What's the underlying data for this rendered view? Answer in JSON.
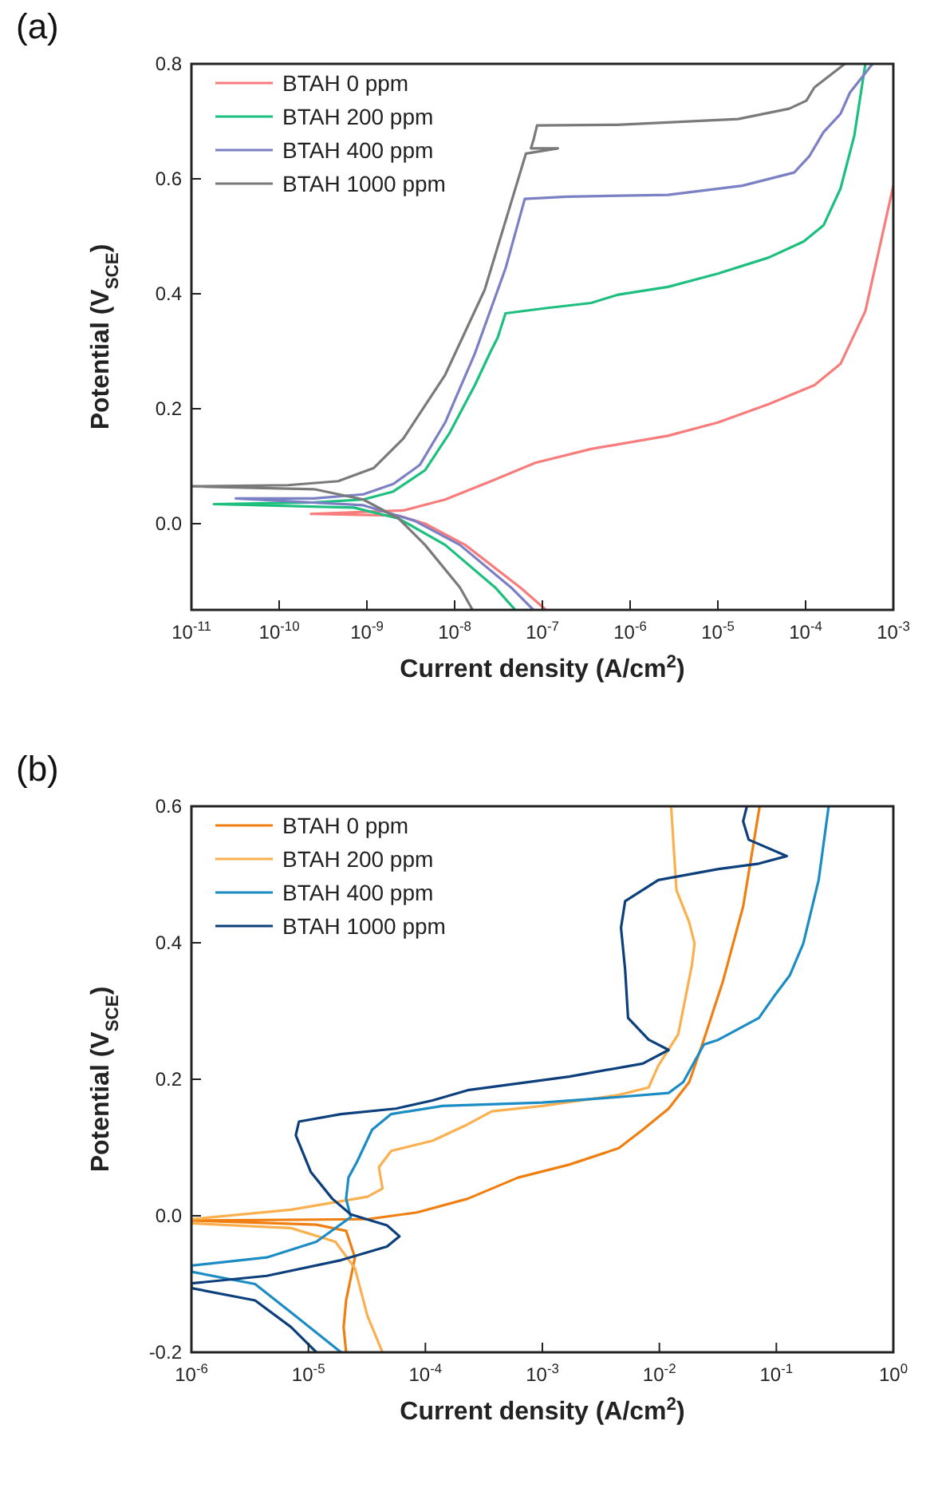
{
  "chart_data": [
    {
      "type": "line",
      "annotations": [
        "(a)"
      ],
      "xlabel": "Current density (A/cm$^{2}$)",
      "ylabel": "Potential (V$_{SCE}$)",
      "log": "x",
      "grid": false,
      "legend": "top left",
      "line_style": "solid",
      "marker": "none",
      "xlim": [
        1e-11,
        0.001
      ],
      "ylim": [
        -0.15,
        0.8
      ],
      "xticks": [
        {
          "value": 1e-11,
          "label": "10$^{-11}$"
        },
        {
          "value": 1e-10,
          "label": "10$^{-10}$"
        },
        {
          "value": 1e-09,
          "label": "10$^{-9}$"
        },
        {
          "value": 1e-08,
          "label": "10$^{-8}$"
        },
        {
          "value": 1e-07,
          "label": "10$^{-7}$"
        },
        {
          "value": 1e-06,
          "label": "10$^{-6}$"
        },
        {
          "value": 1e-05,
          "label": "10$^{-5}$"
        },
        {
          "value": 0.0001,
          "label": "10$^{-4}$"
        },
        {
          "value": 0.001,
          "label": "10$^{-3}$"
        }
      ],
      "yticks": [
        {
          "value": 0,
          "label": "0.0"
        },
        {
          "value": 0.2,
          "label": "0.2"
        },
        {
          "value": 0.4,
          "label": "0.4"
        },
        {
          "value": 0.6,
          "label": "0.6"
        },
        {
          "value": 0.8,
          "label": "0.8"
        }
      ],
      "series": [
        {
          "name": "BTAH 0 ppm",
          "color": "#f87c7c",
          "x": [
            1.1e-07,
            5.6e-08,
            1.32e-08,
            4.6e-09,
            2.3e-09,
            2.3e-10,
            2.6e-09,
            7.8e-09,
            2.6e-08,
            8.3e-08,
            3.6e-07,
            2.7e-06,
            1e-05,
            3.8e-05,
            0.000126,
            0.00025,
            0.00048,
            0.001
          ],
          "values": [
            -0.15,
            -0.111,
            -0.037,
            0.0,
            0.014,
            0.017,
            0.023,
            0.042,
            0.074,
            0.106,
            0.13,
            0.153,
            0.176,
            0.208,
            0.241,
            0.278,
            0.37,
            0.588
          ]
        },
        {
          "name": "BTAH 200 ppm",
          "color": "#1dbf7f",
          "x": [
            4.9e-08,
            2.9e-08,
            7.8e-09,
            2.3e-09,
            7.1e-10,
            1.8e-11,
            2.5e-10,
            9.1e-10,
            2e-09,
            4.6e-09,
            8.7e-09,
            1.7e-08,
            2.6e-08,
            3.1e-08,
            3.8e-08,
            1.1e-07,
            3.6e-07,
            7.1e-07,
            2.7e-06,
            1e-05,
            3.8e-05,
            9.5e-05,
            0.00016,
            0.00025,
            0.00036,
            0.00048
          ],
          "values": [
            -0.15,
            -0.111,
            -0.037,
            0.009,
            0.028,
            0.034,
            0.037,
            0.042,
            0.056,
            0.093,
            0.157,
            0.241,
            0.301,
            0.324,
            0.366,
            0.375,
            0.384,
            0.398,
            0.412,
            0.435,
            0.463,
            0.491,
            0.519,
            0.583,
            0.676,
            0.8
          ]
        },
        {
          "name": "BTAH 400 ppm",
          "color": "#7b7fc4",
          "x": [
            7.9e-08,
            4.4e-08,
            1.15e-08,
            3.5e-09,
            9.1e-10,
            3.2e-11,
            2.5e-10,
            9.1e-10,
            2e-09,
            4e-09,
            7.8e-09,
            1.7e-08,
            3.8e-08,
            6.3e-08,
            1.9e-07,
            2.7e-06,
            1.9e-05,
            7.4e-05,
            0.00011,
            0.00016,
            0.00025,
            0.00032,
            0.00058
          ],
          "values": [
            -0.15,
            -0.111,
            -0.037,
            0.005,
            0.032,
            0.044,
            0.044,
            0.051,
            0.069,
            0.102,
            0.176,
            0.296,
            0.444,
            0.565,
            0.569,
            0.572,
            0.588,
            0.611,
            0.639,
            0.681,
            0.713,
            0.75,
            0.8
          ]
        },
        {
          "name": "BTAH 1000 ppm",
          "color": "#7a7a7a",
          "x": [
            1.6e-08,
            1.15e-08,
            4.6e-09,
            2.3e-09,
            9.1e-10,
            2.5e-10,
            1e-11,
            1.26e-10,
            4.7e-10,
            1.2e-09,
            2.6e-09,
            7.8e-09,
            2.2e-08,
            6.5e-08,
            1.5e-07,
            7.4e-08,
            7.9e-08,
            8.7e-08,
            7.1e-07,
            1.7e-05,
            6.5e-05,
            0.000102,
            0.000126,
            0.00028
          ],
          "values": [
            -0.15,
            -0.111,
            -0.037,
            0.009,
            0.042,
            0.06,
            0.065,
            0.067,
            0.074,
            0.097,
            0.148,
            0.259,
            0.407,
            0.644,
            0.653,
            0.653,
            0.667,
            0.693,
            0.694,
            0.704,
            0.722,
            0.736,
            0.759,
            0.8
          ]
        }
      ]
    },
    {
      "type": "line",
      "annotations": [
        "(b)"
      ],
      "xlabel": "Current density (A/cm$^{2}$)",
      "ylabel": "Potential (V$_{SCE}$)",
      "log": "x",
      "grid": false,
      "legend": "top left",
      "line_style": "solid",
      "marker": "none",
      "xlim": [
        1e-06,
        1
      ],
      "ylim": [
        -0.2,
        0.6
      ],
      "xticks": [
        {
          "value": 1e-06,
          "label": "10$^{-6}$"
        },
        {
          "value": 1e-05,
          "label": "10$^{-5}$"
        },
        {
          "value": 0.0001,
          "label": "10$^{-4}$"
        },
        {
          "value": 0.001,
          "label": "10$^{-3}$"
        },
        {
          "value": 0.01,
          "label": "10$^{-2}$"
        },
        {
          "value": 0.1,
          "label": "10$^{-1}$"
        },
        {
          "value": 1,
          "label": "10$^{0}$"
        }
      ],
      "yticks": [
        -0.2,
        {
          "value": 0,
          "label": "0.0"
        },
        0.2,
        0.4,
        0.6
      ],
      "series": [
        {
          "name": "BTAH 0 ppm",
          "color": "#f07f12",
          "x": [
            2.1e-05,
            2e-05,
            2.1e-05,
            2.5e-05,
            2.1e-05,
            1.17e-05,
            1e-06,
            3.2e-05,
            8.5e-05,
            0.00023,
            0.00062,
            0.0017,
            0.0045,
            0.0072,
            0.012,
            0.018,
            0.024,
            0.035,
            0.052,
            0.072
          ],
          "values": [
            -0.2,
            -0.163,
            -0.124,
            -0.061,
            -0.022,
            -0.013,
            -0.007,
            -0.005,
            0.005,
            0.025,
            0.056,
            0.075,
            0.099,
            0.126,
            0.157,
            0.196,
            0.258,
            0.344,
            0.453,
            0.6
          ]
        },
        {
          "name": "BTAH 200 ppm",
          "color": "#fbb050",
          "x": [
            4.3e-05,
            3.2e-05,
            2.5e-05,
            1.7e-05,
            7.1e-06,
            1e-06,
            1e-06,
            7.1e-06,
            3.2e-05,
            4.3e-05,
            4e-05,
            5.1e-05,
            0.000115,
            0.00023,
            0.00037,
            0.001,
            0.0045,
            0.0081,
            0.0098,
            0.0145,
            0.019,
            0.02,
            0.018,
            0.014,
            0.0126
          ],
          "values": [
            -0.2,
            -0.147,
            -0.077,
            -0.038,
            -0.018,
            -0.011,
            -0.005,
            0.009,
            0.028,
            0.04,
            0.071,
            0.095,
            0.11,
            0.134,
            0.153,
            0.161,
            0.177,
            0.188,
            0.22,
            0.266,
            0.368,
            0.399,
            0.43,
            0.477,
            0.6
          ]
        },
        {
          "name": "BTAH 400 ppm",
          "color": "#1b8cc4",
          "x": [
            1.9e-05,
            7.8e-06,
            3.5e-06,
            1e-06,
            1e-06,
            4.4e-06,
            1.17e-05,
            2.3e-05,
            2.1e-05,
            2.2e-05,
            2.6e-05,
            3.5e-05,
            5.1e-05,
            0.00014,
            0.001,
            0.0045,
            0.012,
            0.016,
            0.024,
            0.032,
            0.071,
            0.095,
            0.13,
            0.17,
            0.23,
            0.28
          ],
          "values": [
            -0.2,
            -0.147,
            -0.1,
            -0.082,
            -0.073,
            -0.061,
            -0.038,
            -0.002,
            0.025,
            0.056,
            0.079,
            0.126,
            0.149,
            0.161,
            0.166,
            0.174,
            0.18,
            0.196,
            0.251,
            0.258,
            0.29,
            0.321,
            0.352,
            0.399,
            0.492,
            0.6
          ]
        },
        {
          "name": "BTAH 1000 ppm",
          "color": "#0c3f7c",
          "x": [
            1.17e-05,
            7.1e-06,
            3.5e-06,
            1e-06,
            1e-06,
            4.4e-06,
            1.9e-05,
            4.7e-05,
            6e-05,
            4.7e-05,
            2.3e-05,
            1.6e-05,
            1.05e-05,
            7.8e-06,
            8.3e-06,
            1.9e-05,
            5.6e-05,
            0.000115,
            0.00023,
            0.0017,
            0.0072,
            0.012,
            0.0081,
            0.0054,
            0.0051,
            0.0047,
            0.0051,
            0.0098,
            0.032,
            0.071,
            0.123,
            0.058,
            0.052,
            0.056
          ],
          "values": [
            -0.2,
            -0.163,
            -0.124,
            -0.106,
            -0.099,
            -0.088,
            -0.065,
            -0.045,
            -0.03,
            -0.014,
            0.002,
            0.025,
            0.064,
            0.118,
            0.138,
            0.149,
            0.157,
            0.169,
            0.184,
            0.204,
            0.223,
            0.243,
            0.258,
            0.29,
            0.36,
            0.422,
            0.461,
            0.492,
            0.508,
            0.516,
            0.527,
            0.551,
            0.578,
            0.6
          ]
        }
      ]
    }
  ]
}
